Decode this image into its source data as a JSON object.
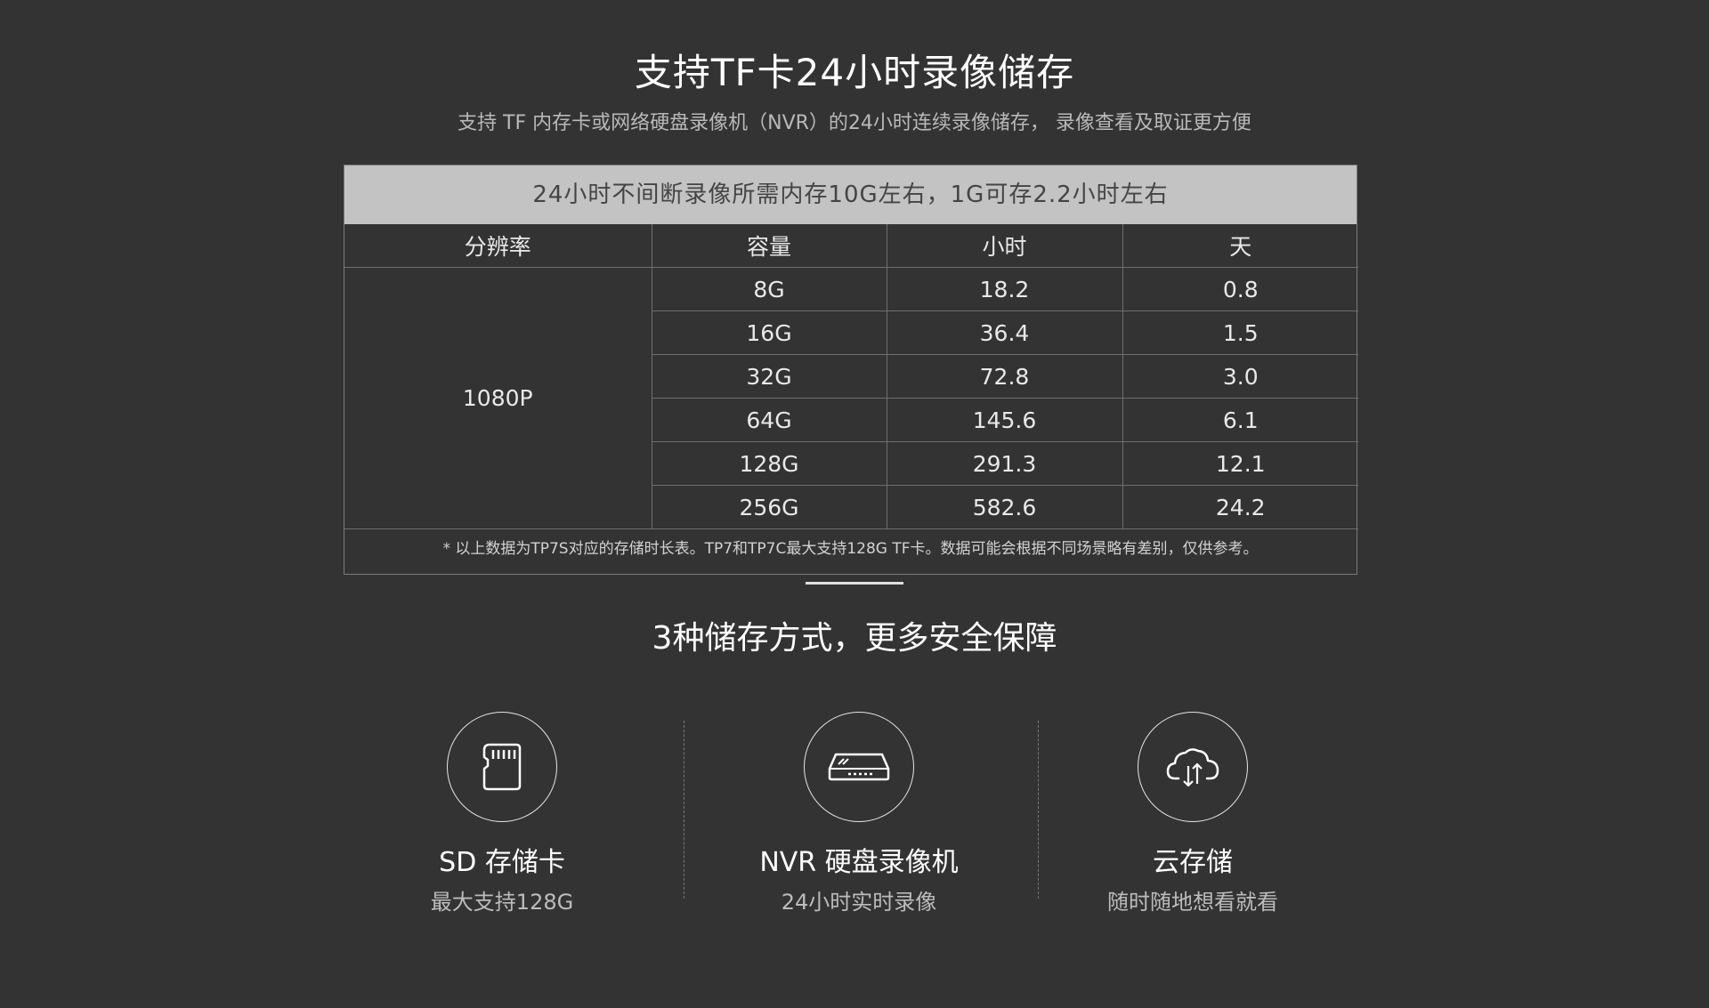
{
  "header": {
    "title": "支持TF卡24小时录像储存",
    "subtitle": "支持 TF 内存卡或网络硬盘录像机（NVR）的24小时连续录像储存， 录像查看及取证更方便"
  },
  "table": {
    "banner": "24小时不间断录像所需内存10G左右，1G可存2.2小时左右",
    "headers": [
      "分辨率",
      "容量",
      "小时",
      "天"
    ],
    "resolution": "1080P",
    "rows": [
      {
        "capacity": "8G",
        "hours": "18.2",
        "days": "0.8"
      },
      {
        "capacity": "16G",
        "hours": "36.4",
        "days": "1.5"
      },
      {
        "capacity": "32G",
        "hours": "72.8",
        "days": "3.0"
      },
      {
        "capacity": "64G",
        "hours": "145.6",
        "days": "6.1"
      },
      {
        "capacity": "128G",
        "hours": "291.3",
        "days": "12.1"
      },
      {
        "capacity": "256G",
        "hours": "582.6",
        "days": "24.2"
      }
    ],
    "note": "* 以上数据为TP7S对应的存储时长表。TP7和TP7C最大支持128G TF卡。数据可能会根据不同场景略有差别，仅供参考。"
  },
  "section": {
    "title": "3种储存方式，更多安全保障"
  },
  "features": [
    {
      "icon": "sd-card-icon",
      "title": "SD 存储卡",
      "subtitle": "最大支持128G"
    },
    {
      "icon": "nvr-device-icon",
      "title": "NVR 硬盘录像机",
      "subtitle": "24小时实时录像"
    },
    {
      "icon": "cloud-sync-icon",
      "title": "云存储",
      "subtitle": "随时随地想看就看"
    }
  ]
}
